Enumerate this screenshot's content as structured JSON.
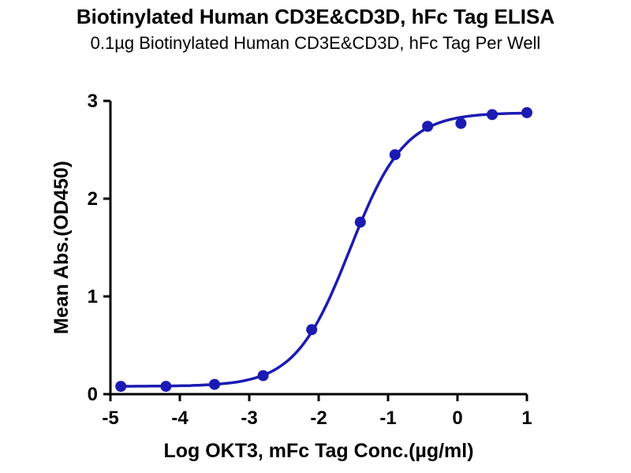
{
  "header": {
    "title": "Biotinylated Human CD3E&CD3D, hFc Tag ELISA",
    "subtitle": "0.1µg Biotinylated Human CD3E&CD3D, hFc Tag Per Well"
  },
  "chart_data": {
    "type": "scatter",
    "title": "Biotinylated Human CD3E&CD3D, hFc Tag ELISA",
    "subtitle": "0.1µg Biotinylated Human CD3E&CD3D, hFc Tag Per Well",
    "xlabel": "Log OKT3, mFc Tag Conc.(µg/ml)",
    "ylabel": "Mean Abs.(OD450)",
    "xlim": [
      -5,
      1
    ],
    "ylim": [
      0,
      3
    ],
    "x_ticks": [
      "-5",
      "-4",
      "-3",
      "-2",
      "-1",
      "0",
      "1"
    ],
    "x_tick_values": [
      -5,
      -4,
      -3,
      -2,
      -1,
      0,
      1
    ],
    "y_ticks": [
      "0",
      "1",
      "2",
      "3"
    ],
    "y_tick_values": [
      0,
      1,
      2,
      3
    ],
    "grid": false,
    "legend": "none",
    "point_color": "#1b1bb3",
    "line_color": "#1b1bb3",
    "axis_color": "#000000",
    "series": [
      {
        "name": "OKT3, mFc Tag",
        "x": [
          -4.85,
          -4.2,
          -3.5,
          -2.8,
          -2.1,
          -1.4,
          -0.9,
          -0.43,
          0.05,
          0.5,
          1.0
        ],
        "y": [
          0.08,
          0.08,
          0.1,
          0.19,
          0.66,
          1.76,
          2.45,
          2.74,
          2.77,
          2.86,
          2.88
        ]
      }
    ],
    "fit": {
      "model": "4PL",
      "bottom": 0.08,
      "top": 2.88,
      "log_ec50": -1.55,
      "hill": 1.1
    }
  }
}
